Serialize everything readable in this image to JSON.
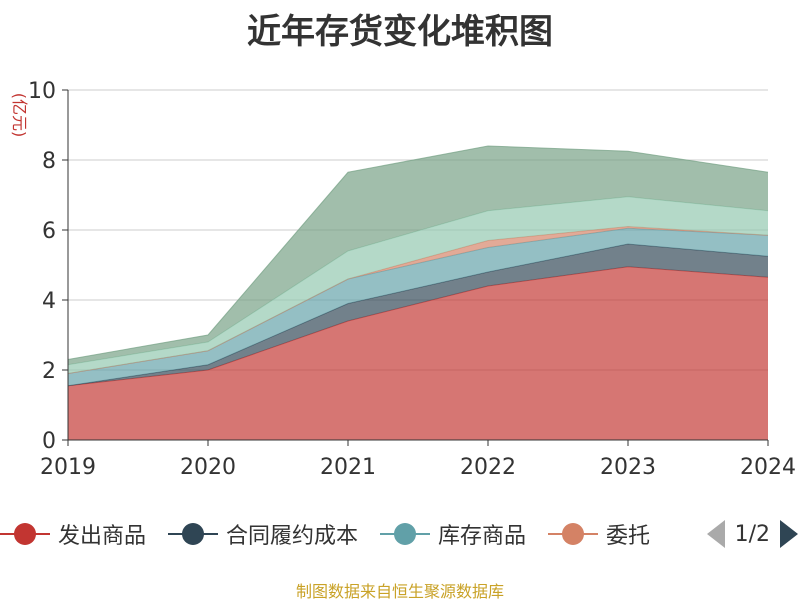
{
  "chart_data": {
    "type": "area",
    "stacked": true,
    "title": "近年存货变化堆积图",
    "ylabel": "(亿元)",
    "ylim": [
      0,
      10
    ],
    "yticks": [
      0,
      2,
      4,
      6,
      8,
      10
    ],
    "categories": [
      "2019",
      "2020",
      "2021",
      "2022",
      "2023",
      "2024"
    ],
    "grid": true,
    "legend_placement": "bottom",
    "series": [
      {
        "name": "发出商品",
        "color": "#c23531",
        "values": [
          1.55,
          2.0,
          3.4,
          4.4,
          4.95,
          4.65
        ]
      },
      {
        "name": "合同履约成本",
        "color": "#2f4554",
        "values": [
          0.0,
          0.15,
          0.5,
          0.4,
          0.65,
          0.6
        ]
      },
      {
        "name": "库存商品",
        "color": "#61a0a8",
        "values": [
          0.35,
          0.4,
          0.7,
          0.7,
          0.45,
          0.6
        ]
      },
      {
        "name": "委托加工物资",
        "color": "#d48265",
        "values": [
          0.0,
          0.0,
          0.0,
          0.2,
          0.05,
          0.0
        ]
      },
      {
        "values": [
          0.25,
          0.25,
          0.8,
          0.85,
          0.85,
          0.7
        ],
        "color": "#91c7ae"
      },
      {
        "values": [
          0.15,
          0.2,
          2.25,
          1.85,
          1.3,
          1.1
        ],
        "color": "#749f83"
      }
    ],
    "legend_visible": [
      "发出商品",
      "合同履约成本",
      "库存商品",
      "委托"
    ],
    "legend_page": "1/2"
  },
  "footer": {
    "source": "制图数据来自恒生聚源数据库"
  }
}
